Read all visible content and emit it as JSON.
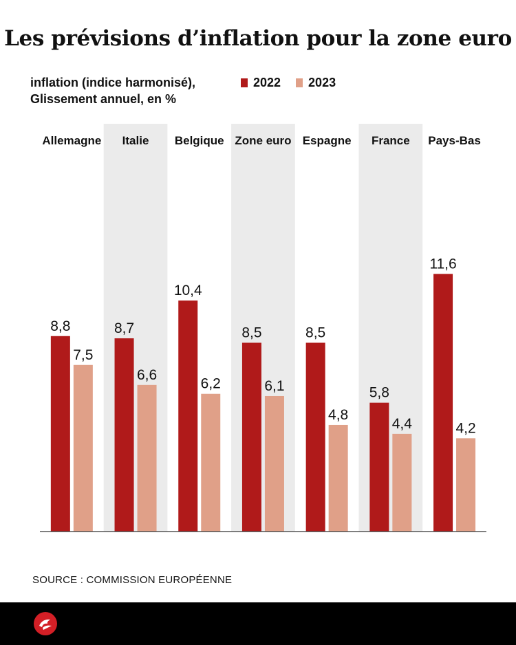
{
  "title": "Les prévisions d’inflation pour la zone euro",
  "subtitle_line1": "inflation (indice harmonisé),",
  "subtitle_line2": "Glissement annuel, en %",
  "legend": [
    {
      "label": "2022",
      "color": "#b01a1a"
    },
    {
      "label": "2023",
      "color": "#e0a088"
    }
  ],
  "source": "SOURCE : COMMISSION EUROPÉENNE",
  "logo_icon": "paris-logo-icon",
  "chart_data": {
    "type": "bar",
    "categories": [
      "Allemagne",
      "Italie",
      "Belgique",
      "Zone euro",
      "Espagne",
      "France",
      "Pays-Bas"
    ],
    "series": [
      {
        "name": "2022",
        "values": [
          8.8,
          8.7,
          10.4,
          8.5,
          8.5,
          5.8,
          11.6
        ],
        "labels": [
          "8,8",
          "8,7",
          "10,4",
          "8,5",
          "8,5",
          "5,8",
          "11,6"
        ],
        "color": "#b01a1a"
      },
      {
        "name": "2023",
        "values": [
          7.5,
          6.6,
          6.2,
          6.1,
          4.8,
          4.4,
          4.2
        ],
        "labels": [
          "7,5",
          "6,6",
          "6,2",
          "6,1",
          "4,8",
          "4,4",
          "4,2"
        ],
        "color": "#e0a088"
      }
    ],
    "ylim": [
      0,
      14
    ],
    "shaded_columns": [
      1,
      3,
      5
    ],
    "shade_color": "#ebebeb",
    "xlabel": "",
    "ylabel": ""
  }
}
